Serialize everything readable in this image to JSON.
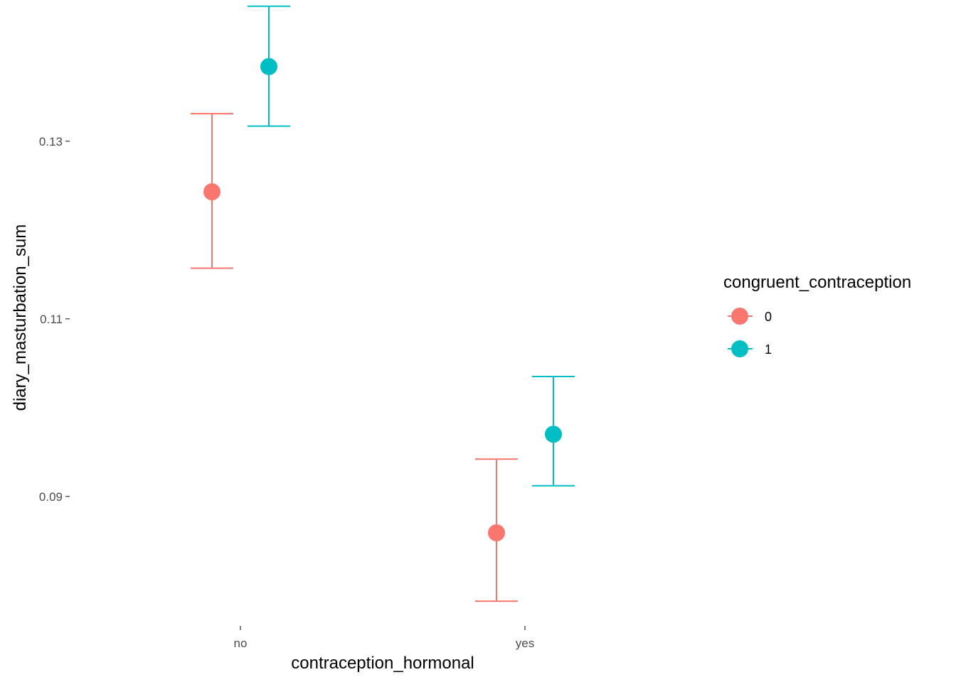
{
  "chart_data": {
    "type": "scatter",
    "subtype": "point-errorbar",
    "xlabel": "contraception_hormonal",
    "ylabel": "diary_masturbation_sum",
    "categories": [
      "no",
      "yes"
    ],
    "y_ticks": [
      "0.09",
      "0.11",
      "0.13"
    ],
    "ylim": [
      0.0755,
      0.1435
    ],
    "grid": false,
    "legend": {
      "title": "congruent_contraception",
      "position": "right"
    },
    "series": [
      {
        "name": "0",
        "color": "#F8766D",
        "points": [
          {
            "x": "no",
            "y": 0.1243,
            "ymin": 0.1157,
            "ymax": 0.1331
          },
          {
            "x": "yes",
            "y": 0.0859,
            "ymin": 0.0782,
            "ymax": 0.0942
          }
        ]
      },
      {
        "name": "1",
        "color": "#00BFC4",
        "points": [
          {
            "x": "no",
            "y": 0.1384,
            "ymin": 0.1317,
            "ymax": 0.1452
          },
          {
            "x": "yes",
            "y": 0.097,
            "ymin": 0.0912,
            "ymax": 0.1035
          }
        ]
      }
    ]
  }
}
